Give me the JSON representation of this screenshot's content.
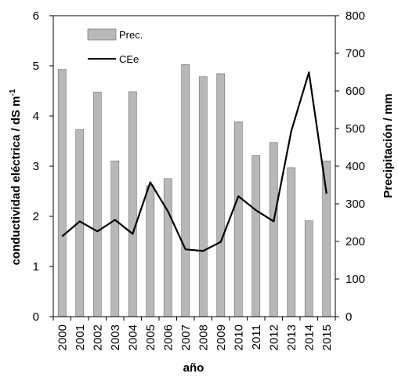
{
  "chart_data": {
    "type": "bar+line",
    "categories": [
      "2000",
      "2001",
      "2002",
      "2003",
      "2004",
      "2005",
      "2006",
      "2007",
      "2008",
      "2009",
      "2010",
      "2011",
      "2012",
      "2013",
      "2014",
      "2015"
    ],
    "series": [
      {
        "name": "Prec.",
        "type": "bar",
        "axis": "right",
        "color": "#b8b8b8",
        "values": [
          657,
          497,
          597,
          414,
          598,
          348,
          367,
          670,
          638,
          646,
          518,
          428,
          463,
          396,
          255,
          414
        ]
      },
      {
        "name": "CEe",
        "type": "line",
        "axis": "left",
        "color": "#000000",
        "values": [
          1.6,
          1.9,
          1.7,
          1.93,
          1.65,
          2.68,
          2.1,
          1.34,
          1.31,
          1.49,
          2.4,
          2.12,
          1.9,
          3.7,
          4.87,
          2.45
        ]
      }
    ],
    "xlabel": "año",
    "ylabel_left": "conductividad eléctrica / dS m",
    "ylabel_left_superscript": "-1",
    "ylabel_right": "Precipitación / mm",
    "ylim_left": [
      0,
      6
    ],
    "yticks_left": [
      "0",
      "1",
      "2",
      "3",
      "4",
      "5",
      "6"
    ],
    "ylim_right": [
      0,
      800
    ],
    "yticks_right": [
      "0",
      "100",
      "200",
      "300",
      "400",
      "500",
      "600",
      "700",
      "800"
    ],
    "grid": false,
    "legend_position": "top-left"
  }
}
